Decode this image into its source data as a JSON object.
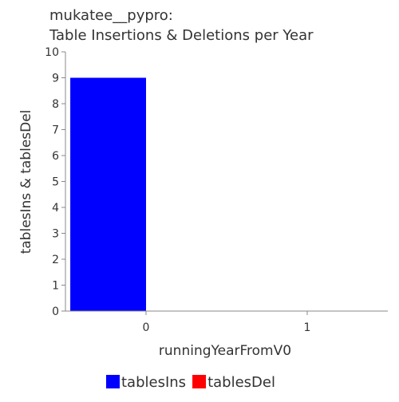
{
  "chart_data": {
    "type": "bar",
    "title_line1": "mukatee__pypro:",
    "title_line2": "Table Insertions & Deletions per Year",
    "xlabel": "runningYearFromV0",
    "ylabel": "tablesIns & tablesDel",
    "categories": [
      "0",
      "1"
    ],
    "series": [
      {
        "name": "tablesIns",
        "color": "#0000ff",
        "values": [
          9,
          0
        ]
      },
      {
        "name": "tablesDel",
        "color": "#ff0000",
        "values": [
          0,
          0
        ]
      }
    ],
    "ylim": [
      0,
      10
    ],
    "yticks": [
      "0",
      "1",
      "2",
      "3",
      "4",
      "5",
      "6",
      "7",
      "8",
      "9",
      "10"
    ],
    "grid": false,
    "legend_position": "bottom"
  }
}
